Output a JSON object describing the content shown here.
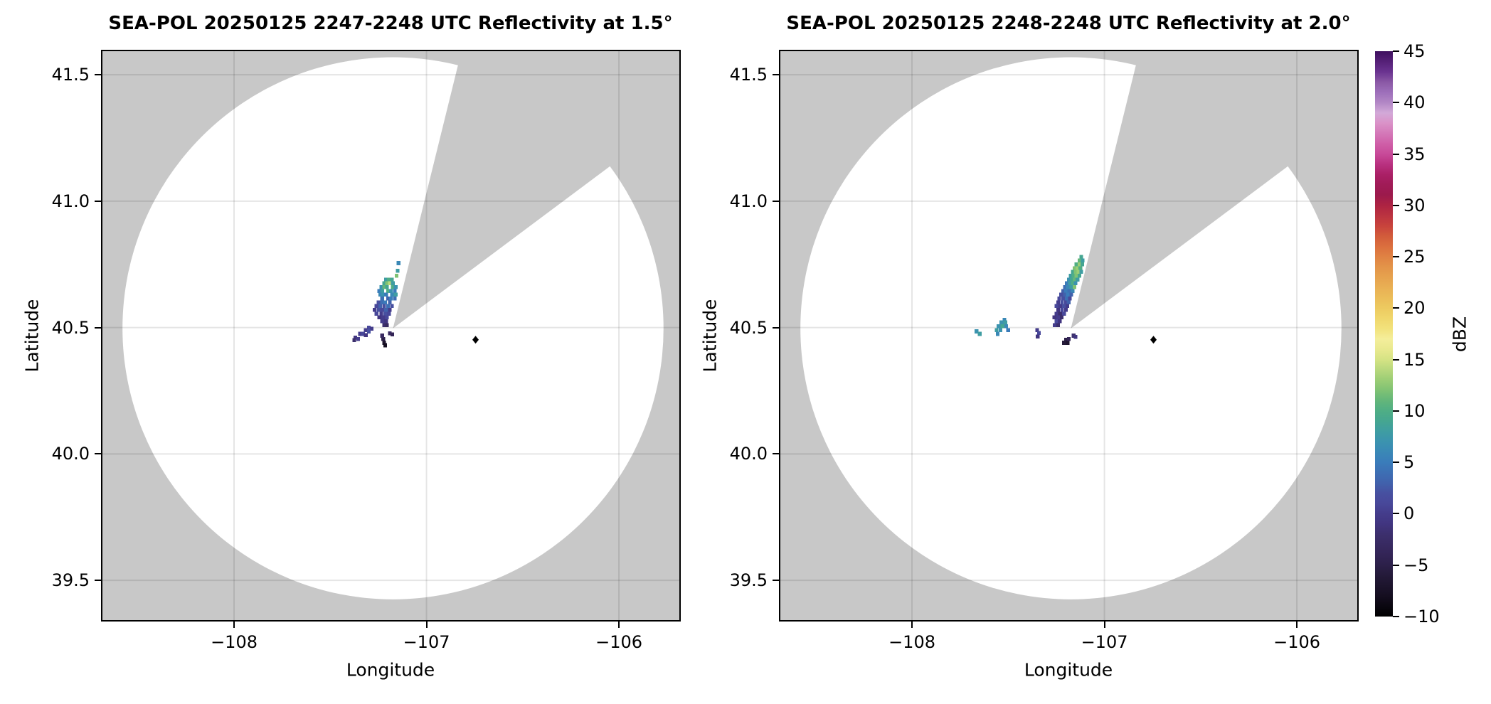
{
  "figure": {
    "background": "#ffffff",
    "no_data_color": "#c8c8c8",
    "coverage_color": "#ffffff",
    "grid_color": "rgba(0,0,0,0.10)",
    "spine_color": "#000000",
    "marker_color": "#000000"
  },
  "chart_data": {
    "type": "heatmap",
    "subtype": "radar-ppi-reflectivity-map",
    "colorbar": {
      "label": "dBZ",
      "vmin": -10,
      "vmax": 45,
      "tick_values": [
        45,
        40,
        35,
        30,
        25,
        20,
        15,
        10,
        5,
        0,
        -5,
        -10
      ],
      "tick_labels": [
        "45",
        "40",
        "35",
        "30",
        "25",
        "20",
        "15",
        "10",
        "5",
        "0",
        "−5",
        "−10"
      ],
      "stops": [
        [
          -10,
          "#000000"
        ],
        [
          -8,
          "#150e20"
        ],
        [
          -6,
          "#241a39"
        ],
        [
          -5,
          "#2c2049"
        ],
        [
          -4,
          "#332456"
        ],
        [
          -3,
          "#382a61"
        ],
        [
          -2,
          "#3c2f6d"
        ],
        [
          -1,
          "#413580"
        ],
        [
          0,
          "#443c8b"
        ],
        [
          1,
          "#48489a"
        ],
        [
          2,
          "#4750a0"
        ],
        [
          3,
          "#4162ac"
        ],
        [
          4,
          "#3d6fb4"
        ],
        [
          5,
          "#3a7cba"
        ],
        [
          6,
          "#3a88b6"
        ],
        [
          7,
          "#3b93af"
        ],
        [
          8,
          "#3f9da2"
        ],
        [
          9,
          "#45a691"
        ],
        [
          10,
          "#4fae85"
        ],
        [
          11,
          "#63b67a"
        ],
        [
          12,
          "#7fc274"
        ],
        [
          13,
          "#9bcd75"
        ],
        [
          14,
          "#b8d87d"
        ],
        [
          15,
          "#d5e384"
        ],
        [
          16,
          "#e9e98f"
        ],
        [
          17,
          "#f4ee9b"
        ],
        [
          18,
          "#f2e27c"
        ],
        [
          19,
          "#f0d76c"
        ],
        [
          20,
          "#edca60"
        ],
        [
          21,
          "#ebbd59"
        ],
        [
          22,
          "#e9b054"
        ],
        [
          23,
          "#e6a24e"
        ],
        [
          24,
          "#e39449"
        ],
        [
          25,
          "#e08243"
        ],
        [
          26,
          "#db6f3e"
        ],
        [
          27,
          "#d25c3b"
        ],
        [
          28,
          "#c8433c"
        ],
        [
          29,
          "#bb3340"
        ],
        [
          30,
          "#ad2342"
        ],
        [
          31,
          "#9c1a4c"
        ],
        [
          32,
          "#a01b57"
        ],
        [
          33,
          "#aa2066"
        ],
        [
          34,
          "#b93180"
        ],
        [
          35,
          "#c84a99"
        ],
        [
          36,
          "#cf5fa8"
        ],
        [
          37,
          "#d478b8"
        ],
        [
          38,
          "#da92c8"
        ],
        [
          39,
          "#d2a9d8"
        ],
        [
          40,
          "#b287c5"
        ],
        [
          41,
          "#9d6fba"
        ],
        [
          42,
          "#8a58a5"
        ],
        [
          43,
          "#6a3390"
        ],
        [
          44,
          "#552077"
        ],
        [
          45,
          "#3e0f5f"
        ]
      ]
    },
    "panels": [
      {
        "title": "SEA-POL 20250125 2247-2248 UTC Reflectivity at 1.5°",
        "xlabel": "Longitude",
        "ylabel": "Latitude",
        "xlim": [
          -108.684,
          -105.686
        ],
        "ylim": [
          39.343,
          41.593
        ],
        "x_ticks": [
          {
            "value": -108,
            "label": "−108"
          },
          {
            "value": -107,
            "label": "−107"
          },
          {
            "value": -106,
            "label": "−106"
          }
        ],
        "y_ticks": [
          {
            "value": 41.5,
            "label": "41.5"
          },
          {
            "value": 41.0,
            "label": "41.0"
          },
          {
            "value": 40.5,
            "label": "40.5"
          },
          {
            "value": 40.0,
            "label": "40.0"
          },
          {
            "value": 39.5,
            "label": "39.5"
          }
        ],
        "radar_site": {
          "lon": -107.174,
          "lat": 40.497
        },
        "range_km": 119,
        "blocked_azimuth_deg": [
          13.9,
          53.3
        ],
        "site_marker": {
          "lon": -106.745,
          "lat": 40.452,
          "shape": "diamond"
        },
        "echoes_lon_lat_dbz": [
          [
            -107.145,
            40.755,
            6
          ],
          [
            -107.15,
            40.725,
            8
          ],
          [
            -107.155,
            40.705,
            12
          ],
          [
            -107.21,
            40.69,
            8
          ],
          [
            -107.195,
            40.69,
            10
          ],
          [
            -107.18,
            40.69,
            9
          ],
          [
            -107.22,
            40.675,
            9
          ],
          [
            -107.205,
            40.675,
            12
          ],
          [
            -107.19,
            40.675,
            14
          ],
          [
            -107.175,
            40.675,
            8
          ],
          [
            -107.235,
            40.66,
            7
          ],
          [
            -107.22,
            40.66,
            11
          ],
          [
            -107.205,
            40.66,
            9
          ],
          [
            -107.175,
            40.66,
            10
          ],
          [
            -107.16,
            40.66,
            7
          ],
          [
            -107.245,
            40.645,
            5
          ],
          [
            -107.23,
            40.645,
            8
          ],
          [
            -107.2,
            40.645,
            10
          ],
          [
            -107.185,
            40.645,
            7
          ],
          [
            -107.165,
            40.645,
            5
          ],
          [
            -107.24,
            40.63,
            6
          ],
          [
            -107.225,
            40.63,
            7
          ],
          [
            -107.21,
            40.63,
            5
          ],
          [
            -107.18,
            40.63,
            6
          ],
          [
            -107.16,
            40.63,
            8
          ],
          [
            -107.23,
            40.615,
            4
          ],
          [
            -107.2,
            40.615,
            3
          ],
          [
            -107.185,
            40.615,
            5
          ],
          [
            -107.165,
            40.615,
            4
          ],
          [
            -107.25,
            40.6,
            2
          ],
          [
            -107.23,
            40.6,
            4
          ],
          [
            -107.215,
            40.6,
            5
          ],
          [
            -107.19,
            40.6,
            3
          ],
          [
            -107.26,
            40.585,
            1
          ],
          [
            -107.24,
            40.585,
            3
          ],
          [
            -107.22,
            40.585,
            2
          ],
          [
            -107.2,
            40.585,
            4
          ],
          [
            -107.18,
            40.585,
            2
          ],
          [
            -107.27,
            40.57,
            0
          ],
          [
            -107.25,
            40.57,
            2
          ],
          [
            -107.23,
            40.57,
            1
          ],
          [
            -107.21,
            40.57,
            3
          ],
          [
            -107.19,
            40.57,
            0
          ],
          [
            -107.26,
            40.555,
            1
          ],
          [
            -107.235,
            40.555,
            0
          ],
          [
            -107.215,
            40.555,
            2
          ],
          [
            -107.195,
            40.555,
            1
          ],
          [
            -107.245,
            40.54,
            -1
          ],
          [
            -107.225,
            40.54,
            0
          ],
          [
            -107.205,
            40.54,
            1
          ],
          [
            -107.23,
            40.525,
            0
          ],
          [
            -107.21,
            40.525,
            -1
          ],
          [
            -107.22,
            40.51,
            -2
          ],
          [
            -107.205,
            40.51,
            -3
          ],
          [
            -107.3,
            40.5,
            1
          ],
          [
            -107.285,
            40.495,
            0
          ],
          [
            -107.315,
            40.49,
            0
          ],
          [
            -107.3,
            40.485,
            2
          ],
          [
            -107.345,
            40.475,
            0
          ],
          [
            -107.33,
            40.475,
            1
          ],
          [
            -107.315,
            40.47,
            -1
          ],
          [
            -107.37,
            40.46,
            -1
          ],
          [
            -107.355,
            40.455,
            0
          ],
          [
            -107.375,
            40.45,
            -2
          ],
          [
            -107.225,
            40.455,
            -5
          ],
          [
            -107.22,
            40.44,
            -7
          ],
          [
            -107.215,
            40.43,
            -8
          ],
          [
            -107.23,
            40.468,
            -3
          ],
          [
            -107.19,
            40.477,
            -3
          ],
          [
            -107.178,
            40.473,
            -4
          ]
        ]
      },
      {
        "title": "SEA-POL 20250125 2248-2248 UTC Reflectivity at 2.0°",
        "xlabel": "Longitude",
        "ylabel": "Latitude",
        "xlim": [
          -108.684,
          -105.686
        ],
        "ylim": [
          39.343,
          41.593
        ],
        "x_ticks": [
          {
            "value": -108,
            "label": "−108"
          },
          {
            "value": -107,
            "label": "−107"
          },
          {
            "value": -106,
            "label": "−106"
          }
        ],
        "y_ticks": [
          {
            "value": 41.5,
            "label": "41.5"
          },
          {
            "value": 41.0,
            "label": "41.0"
          },
          {
            "value": 40.5,
            "label": "40.5"
          },
          {
            "value": 40.0,
            "label": "40.0"
          },
          {
            "value": 39.5,
            "label": "39.5"
          }
        ],
        "radar_site": {
          "lon": -107.174,
          "lat": 40.497
        },
        "range_km": 119,
        "blocked_azimuth_deg": [
          13.9,
          53.3
        ],
        "site_marker": {
          "lon": -106.745,
          "lat": 40.452,
          "shape": "diamond"
        },
        "echoes_lon_lat_dbz": [
          [
            -107.12,
            40.78,
            9
          ],
          [
            -107.13,
            40.765,
            11
          ],
          [
            -107.113,
            40.765,
            8
          ],
          [
            -107.145,
            40.75,
            10
          ],
          [
            -107.13,
            40.75,
            13
          ],
          [
            -107.115,
            40.75,
            9
          ],
          [
            -107.155,
            40.735,
            12
          ],
          [
            -107.14,
            40.735,
            13
          ],
          [
            -107.125,
            40.735,
            10
          ],
          [
            -107.165,
            40.72,
            9
          ],
          [
            -107.15,
            40.72,
            12
          ],
          [
            -107.135,
            40.72,
            13
          ],
          [
            -107.12,
            40.72,
            8
          ],
          [
            -107.175,
            40.705,
            8
          ],
          [
            -107.16,
            40.705,
            10
          ],
          [
            -107.145,
            40.705,
            12
          ],
          [
            -107.13,
            40.705,
            9
          ],
          [
            -107.185,
            40.69,
            7
          ],
          [
            -107.17,
            40.69,
            9
          ],
          [
            -107.155,
            40.69,
            11
          ],
          [
            -107.14,
            40.69,
            8
          ],
          [
            -107.195,
            40.675,
            5
          ],
          [
            -107.18,
            40.675,
            8
          ],
          [
            -107.165,
            40.675,
            10
          ],
          [
            -107.15,
            40.675,
            7
          ],
          [
            -107.205,
            40.66,
            4
          ],
          [
            -107.19,
            40.66,
            6
          ],
          [
            -107.172,
            40.66,
            8
          ],
          [
            -107.155,
            40.66,
            12
          ],
          [
            -107.215,
            40.645,
            3
          ],
          [
            -107.2,
            40.645,
            5
          ],
          [
            -107.182,
            40.645,
            4
          ],
          [
            -107.165,
            40.645,
            6
          ],
          [
            -107.225,
            40.63,
            2
          ],
          [
            -107.205,
            40.63,
            3
          ],
          [
            -107.19,
            40.63,
            5
          ],
          [
            -107.172,
            40.63,
            3
          ],
          [
            -107.235,
            40.615,
            1
          ],
          [
            -107.215,
            40.615,
            2
          ],
          [
            -107.196,
            40.615,
            4
          ],
          [
            -107.18,
            40.615,
            1
          ],
          [
            -107.24,
            40.6,
            0
          ],
          [
            -107.22,
            40.6,
            2
          ],
          [
            -107.2,
            40.6,
            1
          ],
          [
            -107.186,
            40.6,
            3
          ],
          [
            -107.25,
            40.585,
            1
          ],
          [
            -107.23,
            40.585,
            0
          ],
          [
            -107.21,
            40.585,
            2
          ],
          [
            -107.192,
            40.585,
            0
          ],
          [
            -107.24,
            40.57,
            -1
          ],
          [
            -107.22,
            40.57,
            1
          ],
          [
            -107.2,
            40.57,
            0
          ],
          [
            -107.25,
            40.555,
            0
          ],
          [
            -107.23,
            40.555,
            -2
          ],
          [
            -107.21,
            40.555,
            1
          ],
          [
            -107.26,
            40.54,
            -1
          ],
          [
            -107.24,
            40.54,
            0
          ],
          [
            -107.222,
            40.54,
            -2
          ],
          [
            -107.25,
            40.525,
            1
          ],
          [
            -107.232,
            40.525,
            -1
          ],
          [
            -107.258,
            40.51,
            0
          ],
          [
            -107.24,
            40.51,
            -2
          ],
          [
            -107.52,
            40.53,
            6
          ],
          [
            -107.535,
            40.52,
            7
          ],
          [
            -107.515,
            40.52,
            8
          ],
          [
            -107.55,
            40.505,
            7
          ],
          [
            -107.53,
            40.505,
            9
          ],
          [
            -107.51,
            40.505,
            6
          ],
          [
            -107.56,
            40.49,
            8
          ],
          [
            -107.54,
            40.49,
            7
          ],
          [
            -107.5,
            40.49,
            5
          ],
          [
            -107.555,
            40.475,
            6
          ],
          [
            -107.665,
            40.485,
            7
          ],
          [
            -107.648,
            40.475,
            8
          ],
          [
            -107.35,
            40.49,
            0
          ],
          [
            -107.34,
            40.478,
            1
          ],
          [
            -107.347,
            40.465,
            -1
          ],
          [
            -107.2,
            40.452,
            -5
          ],
          [
            -107.21,
            40.44,
            -6
          ],
          [
            -107.19,
            40.44,
            -7
          ],
          [
            -107.185,
            40.455,
            -4
          ],
          [
            -107.16,
            40.468,
            -2
          ],
          [
            -107.15,
            40.463,
            -1
          ]
        ]
      }
    ]
  }
}
